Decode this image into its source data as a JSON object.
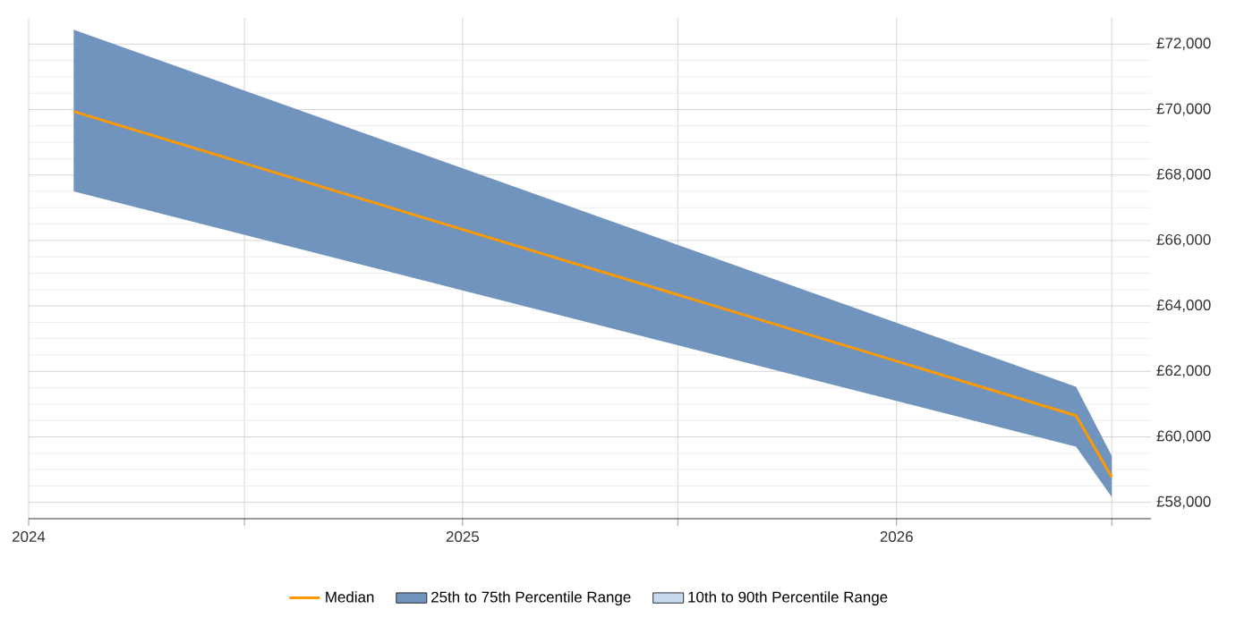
{
  "chart_data": {
    "type": "line",
    "x": [
      "2024-02-08",
      "2026-06-01",
      "2026-07-01"
    ],
    "series": [
      {
        "name": "Median",
        "color": "#ff9900",
        "values": [
          69940,
          60650,
          58770
        ]
      },
      {
        "name": "25th to 75th Percentile Range",
        "type": "area",
        "color": "#7094bd",
        "values": [
          null,
          null,
          null
        ],
        "lower": [
          67500,
          59700,
          58160
        ],
        "upper": [
          72440,
          61530,
          59420
        ]
      },
      {
        "name": "10th to 90th Percentile Range",
        "type": "area",
        "color": "#c6d9ee",
        "values": [
          null,
          null,
          null
        ]
      }
    ],
    "xlim": [
      "2024-01-01",
      "2026-08-03"
    ],
    "xticks": [
      {
        "value": "2024-01-01",
        "label": "2024"
      },
      {
        "value": "2024-07-01",
        "label": null
      },
      {
        "value": "2025-01-01",
        "label": "2025"
      },
      {
        "value": "2025-07-01",
        "label": null
      },
      {
        "value": "2026-01-01",
        "label": "2026"
      },
      {
        "value": "2026-07-01",
        "label": null
      }
    ],
    "ylim": [
      57500,
      72800
    ],
    "yticks": [
      {
        "value": 58000,
        "label": "£58,000"
      },
      {
        "value": 60000,
        "label": "£60,000"
      },
      {
        "value": 62000,
        "label": "£62,000"
      },
      {
        "value": 64000,
        "label": "£64,000"
      },
      {
        "value": 66000,
        "label": "£66,000"
      },
      {
        "value": 68000,
        "label": "£68,000"
      },
      {
        "value": 70000,
        "label": "£70,000"
      },
      {
        "value": 72000,
        "label": "£72,000"
      }
    ],
    "grid": true,
    "legend": "bottom"
  }
}
